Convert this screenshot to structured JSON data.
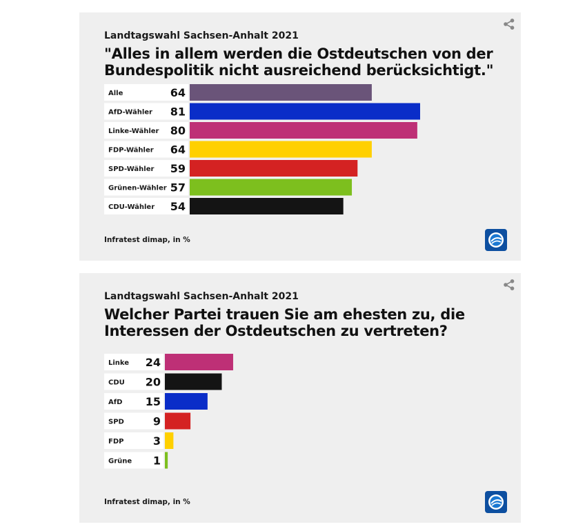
{
  "chart_data": [
    {
      "type": "bar",
      "orientation": "horizontal",
      "subtitle": "Landtagswahl Sachsen-Anhalt 2021",
      "title": "\"Alles in allem werden die Ostdeutschen von der Bundespolitik nicht ausreichend berücksichtigt.\"",
      "categories": [
        "Alle",
        "AfD-Wähler",
        "Linke-Wähler",
        "FDP-Wähler",
        "SPD-Wähler",
        "Grünen-Wähler",
        "CDU-Wähler"
      ],
      "values": [
        64,
        81,
        80,
        64,
        59,
        57,
        54
      ],
      "colors": [
        "#6a5479",
        "#0a2dc8",
        "#be3076",
        "#ffd000",
        "#d42222",
        "#7dbf1e",
        "#141414"
      ],
      "xlim": [
        0,
        81
      ],
      "source": "Infratest dimap, in %"
    },
    {
      "type": "bar",
      "orientation": "horizontal",
      "subtitle": "Landtagswahl Sachsen-Anhalt 2021",
      "title": "Welcher Partei trauen Sie am ehesten zu, die Interessen der Ostdeutschen zu vertreten?",
      "categories": [
        "Linke",
        "CDU",
        "AfD",
        "SPD",
        "FDP",
        "Grüne"
      ],
      "values": [
        24,
        20,
        15,
        9,
        3,
        1
      ],
      "colors": [
        "#be3076",
        "#141414",
        "#0a2dc8",
        "#d42222",
        "#ffd000",
        "#7dbf1e"
      ],
      "xlim": [
        0,
        81
      ],
      "source": "Infratest dimap, in %"
    }
  ]
}
